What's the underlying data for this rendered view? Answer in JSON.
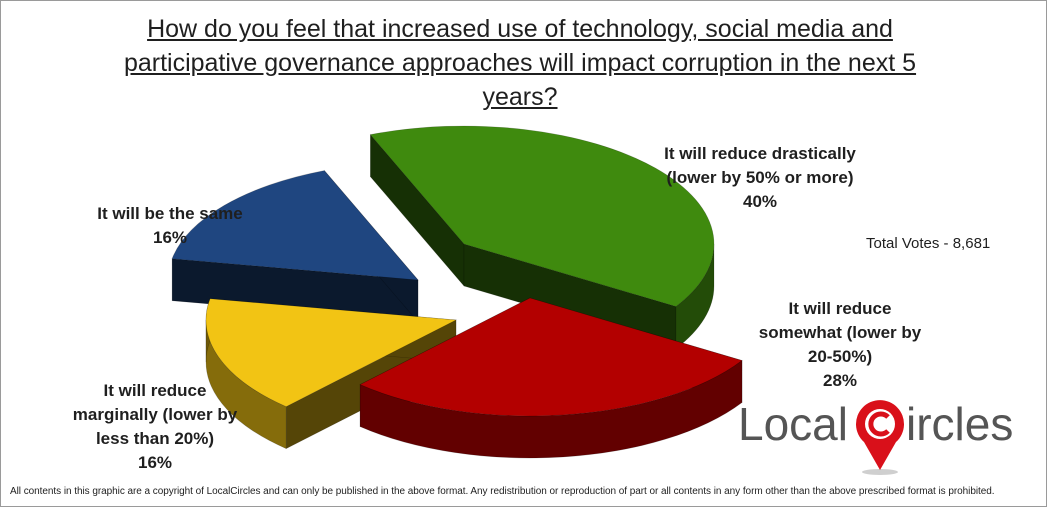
{
  "chart_data": {
    "type": "pie",
    "title": "How do you feel that increased use of technology, social media and participative governance approaches will impact corruption in the next 5 years?",
    "slices": [
      {
        "label": "It will reduce drastically (lower by 50% or more)",
        "value": 40,
        "value_label": "40%",
        "color": "#3f8a0e"
      },
      {
        "label": "It will reduce somewhat (lower by 20-50%)",
        "value": 28,
        "value_label": "28%",
        "color": "#b30000"
      },
      {
        "label": "It will reduce marginally (lower by less than 20%)",
        "value": 16,
        "value_label": "16%",
        "color": "#f2c414"
      },
      {
        "label": "It will be the same",
        "value": 16,
        "value_label": "16%",
        "color": "#1f4680"
      }
    ]
  },
  "title_lines": [
    "How do you feel that increased use of technology, social media and",
    "participative governance approaches will impact corruption in the next 5",
    "years?"
  ],
  "labels": {
    "drastic": [
      "It will reduce drastically",
      "(lower by 50% or more)",
      "40%"
    ],
    "somewhat": [
      "It will reduce",
      "somewhat (lower by",
      "20-50%)",
      "28%"
    ],
    "marginal": [
      "It will reduce",
      "marginally (lower by",
      "less than 20%)",
      "16%"
    ],
    "same": [
      "It will be the same",
      "16%"
    ]
  },
  "total_votes": "Total Votes - 8,681",
  "logo": {
    "text_local": "Local",
    "text_circles": "ircles",
    "icon": "map-pin-c-icon"
  },
  "footer": "All contents in this graphic are a copyright of LocalCircles and can only be published in the above format. Any redistribution or reproduction of part or all contents in any form other than the above prescribed format is prohibited."
}
